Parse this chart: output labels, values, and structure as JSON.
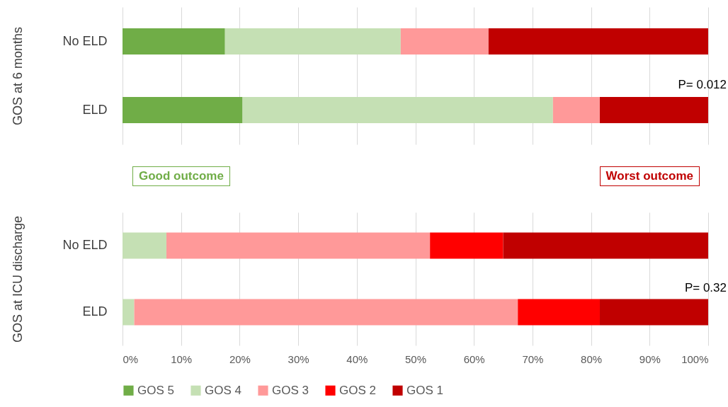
{
  "chart_data": [
    {
      "type": "bar",
      "orientation": "horizontal",
      "stacked": true,
      "ylabel": "GOS at 6 months",
      "categories": [
        "No ELD",
        "ELD"
      ],
      "series": [
        {
          "color": "#70ad47",
          "values": [
            17.5,
            20.5
          ]
        },
        {
          "color": "#c5e0b4",
          "values": [
            30,
            53
          ]
        },
        {
          "color": "#ff9999",
          "values": [
            15,
            8
          ]
        },
        {
          "color": "#ff0000",
          "values": [
            0,
            0
          ]
        },
        {
          "color": "#c00000",
          "values": [
            37.5,
            18.5
          ]
        }
      ],
      "xlim": [
        0,
        100
      ],
      "xticks": [
        {
          "value": 0,
          "label": null
        },
        {
          "value": 10,
          "label": null
        },
        {
          "value": 20,
          "label": null
        },
        {
          "value": 30,
          "label": null
        },
        {
          "value": 40,
          "label": null
        },
        {
          "value": 50,
          "label": null
        },
        {
          "value": 60,
          "label": null
        },
        {
          "value": 70,
          "label": null
        },
        {
          "value": 80,
          "label": null
        },
        {
          "value": 90,
          "label": null
        },
        {
          "value": 100,
          "label": null
        }
      ],
      "grid": "x",
      "tick_labels": "y",
      "legend": false,
      "annotations": [
        "P= 0.012"
      ]
    },
    {
      "type": "bar",
      "orientation": "horizontal",
      "stacked": true,
      "ylabel": "GOS at ICU discharge",
      "categories": [
        "No ELD",
        "ELD"
      ],
      "series": [
        {
          "name": "GOS 5",
          "color": "#70ad47",
          "values": [
            0,
            0
          ]
        },
        {
          "name": "GOS 4",
          "color": "#c5e0b4",
          "values": [
            7.5,
            2
          ]
        },
        {
          "name": "GOS 3",
          "color": "#ff9999",
          "values": [
            45,
            65.5
          ]
        },
        {
          "name": "GOS 2",
          "color": "#ff0000",
          "values": [
            12.5,
            14
          ]
        },
        {
          "name": "GOS 1",
          "color": "#c00000",
          "values": [
            35,
            18.5
          ]
        }
      ],
      "xlim": [
        0,
        100
      ],
      "xticks": [
        {
          "value": 0,
          "label": "0%"
        },
        {
          "value": 10,
          "label": "10%"
        },
        {
          "value": 20,
          "label": "20%"
        },
        {
          "value": 30,
          "label": "30%"
        },
        {
          "value": 40,
          "label": "40%"
        },
        {
          "value": 50,
          "label": "50%"
        },
        {
          "value": 60,
          "label": "60%"
        },
        {
          "value": 70,
          "label": "70%"
        },
        {
          "value": 80,
          "label": "80%"
        },
        {
          "value": 90,
          "label": "90%"
        },
        {
          "value": 100,
          "label": "100%"
        }
      ],
      "grid": "x",
      "legend": "bottom",
      "annotations": [
        "Good outcome",
        "Worst outcome",
        "P= 0.32"
      ]
    }
  ]
}
